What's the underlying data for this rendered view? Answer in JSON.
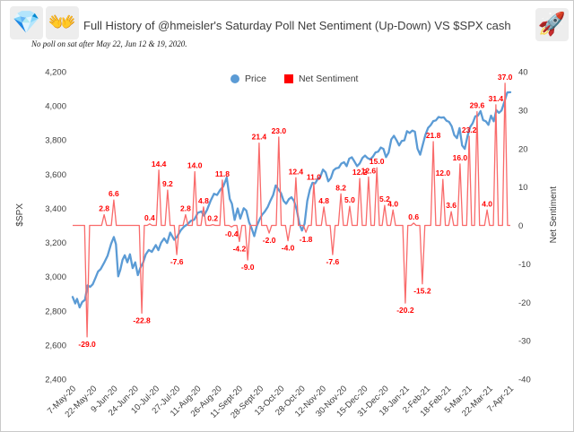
{
  "header": {
    "title": "Full History of @hmeisler's Saturday Poll Net Sentiment (Up-Down) VS $SPX  cash",
    "subtitle": "No poll on sat after May 22, Jun 12 & 19, 2020.",
    "icons": {
      "diamond": "💎",
      "open_hands": "👐",
      "rocket": "🚀"
    }
  },
  "legend": {
    "price_label": "Price",
    "sentiment_label": "Net Sentiment",
    "price_color": "#5B9BD5",
    "sentiment_color": "#FF0000"
  },
  "chart_data": {
    "type": "line",
    "title": "Full History of @hmeisler's Saturday Poll Net Sentiment (Up-Down) VS $SPX cash",
    "subtitle": "No poll on sat after May 22, Jun 12 & 19, 2020.",
    "legend_position": "top",
    "grid": false,
    "left_axis": {
      "label": "$SPX",
      "min": 2400,
      "max": 4200,
      "ticks": [
        "4,200",
        "4,000",
        "3,800",
        "3,600",
        "3,400",
        "3,200",
        "3,000",
        "2,800",
        "2,600",
        "2,400"
      ],
      "tick_values": [
        4200,
        4000,
        3800,
        3600,
        3400,
        3200,
        3000,
        2800,
        2600,
        2400
      ]
    },
    "right_axis": {
      "label": "Net Sentiment",
      "min": -40,
      "max": 40,
      "ticks": [
        "40",
        "30",
        "20",
        "10",
        "0",
        "-10",
        "-20",
        "-30",
        "-40"
      ],
      "tick_values": [
        40,
        30,
        20,
        10,
        0,
        -10,
        -20,
        -30,
        -40
      ]
    },
    "x_ticks": [
      "7-May-20",
      "22-May-20",
      "9-Jun-20",
      "24-Jun-20",
      "10-Jul-20",
      "27-Jul-20",
      "11-Aug-20",
      "26-Aug-20",
      "11-Sept-20",
      "28-Sept-20",
      "13-Oct-20",
      "28-Oct-20",
      "12-Nov-20",
      "30-Nov-20",
      "15-Dec-20",
      "31-Dec-20",
      "18-Jan-21",
      "2-Feb-21",
      "18-Feb-21",
      "5-Mar-21",
      "22-Mar-21",
      "7-Apr-21"
    ],
    "series": [
      {
        "name": "Price",
        "type": "line",
        "axis": "left",
        "color": "#5B9BD5",
        "points": [
          [
            0.0,
            2881
          ],
          [
            0.006,
            2843
          ],
          [
            0.01,
            2870
          ],
          [
            0.016,
            2820
          ],
          [
            0.022,
            2852
          ],
          [
            0.028,
            2864
          ],
          [
            0.034,
            2949
          ],
          [
            0.04,
            2940
          ],
          [
            0.046,
            2955
          ],
          [
            0.052,
            2992
          ],
          [
            0.058,
            3030
          ],
          [
            0.064,
            3044
          ],
          [
            0.072,
            3081
          ],
          [
            0.08,
            3123
          ],
          [
            0.088,
            3193
          ],
          [
            0.094,
            3232
          ],
          [
            0.099,
            3190
          ],
          [
            0.104,
            3002
          ],
          [
            0.109,
            3041
          ],
          [
            0.114,
            3098
          ],
          [
            0.119,
            3125
          ],
          [
            0.125,
            3084
          ],
          [
            0.131,
            3131
          ],
          [
            0.137,
            3050
          ],
          [
            0.143,
            3084
          ],
          [
            0.149,
            3009
          ],
          [
            0.155,
            3053
          ],
          [
            0.161,
            3083
          ],
          [
            0.167,
            3130
          ],
          [
            0.174,
            3156
          ],
          [
            0.181,
            3145
          ],
          [
            0.19,
            3185
          ],
          [
            0.196,
            3155
          ],
          [
            0.202,
            3198
          ],
          [
            0.209,
            3224
          ],
          [
            0.216,
            3197
          ],
          [
            0.223,
            3258
          ],
          [
            0.232,
            3216
          ],
          [
            0.239,
            3235
          ],
          [
            0.247,
            3271
          ],
          [
            0.255,
            3294
          ],
          [
            0.262,
            3306
          ],
          [
            0.27,
            3327
          ],
          [
            0.278,
            3334
          ],
          [
            0.286,
            3374
          ],
          [
            0.294,
            3382
          ],
          [
            0.3,
            3357
          ],
          [
            0.307,
            3390
          ],
          [
            0.315,
            3443
          ],
          [
            0.323,
            3485
          ],
          [
            0.33,
            3478
          ],
          [
            0.337,
            3508
          ],
          [
            0.344,
            3527
          ],
          [
            0.352,
            3581
          ],
          [
            0.359,
            3455
          ],
          [
            0.364,
            3427
          ],
          [
            0.37,
            3332
          ],
          [
            0.377,
            3399
          ],
          [
            0.383,
            3340
          ],
          [
            0.391,
            3401
          ],
          [
            0.397,
            3386
          ],
          [
            0.403,
            3319
          ],
          [
            0.409,
            3282
          ],
          [
            0.415,
            3237
          ],
          [
            0.421,
            3298
          ],
          [
            0.427,
            3335
          ],
          [
            0.433,
            3363
          ],
          [
            0.439,
            3381
          ],
          [
            0.446,
            3409
          ],
          [
            0.452,
            3446
          ],
          [
            0.458,
            3477
          ],
          [
            0.464,
            3534
          ],
          [
            0.47,
            3511
          ],
          [
            0.476,
            3489
          ],
          [
            0.482,
            3444
          ],
          [
            0.488,
            3427
          ],
          [
            0.494,
            3454
          ],
          [
            0.5,
            3465
          ],
          [
            0.506,
            3443
          ],
          [
            0.512,
            3390
          ],
          [
            0.518,
            3310
          ],
          [
            0.524,
            3270
          ],
          [
            0.53,
            3310
          ],
          [
            0.536,
            3443
          ],
          [
            0.542,
            3510
          ],
          [
            0.548,
            3550
          ],
          [
            0.554,
            3546
          ],
          [
            0.56,
            3572
          ],
          [
            0.566,
            3585
          ],
          [
            0.572,
            3627
          ],
          [
            0.578,
            3610
          ],
          [
            0.584,
            3558
          ],
          [
            0.59,
            3577
          ],
          [
            0.596,
            3622
          ],
          [
            0.602,
            3635
          ],
          [
            0.608,
            3638
          ],
          [
            0.614,
            3662
          ],
          [
            0.62,
            3670
          ],
          [
            0.626,
            3647
          ],
          [
            0.632,
            3691
          ],
          [
            0.638,
            3699
          ],
          [
            0.644,
            3673
          ],
          [
            0.65,
            3647
          ],
          [
            0.656,
            3663
          ],
          [
            0.662,
            3695
          ],
          [
            0.668,
            3709
          ],
          [
            0.674,
            3694
          ],
          [
            0.68,
            3687
          ],
          [
            0.686,
            3703
          ],
          [
            0.692,
            3727
          ],
          [
            0.698,
            3732
          ],
          [
            0.704,
            3756
          ],
          [
            0.71,
            3748
          ],
          [
            0.716,
            3700
          ],
          [
            0.722,
            3726
          ],
          [
            0.728,
            3804
          ],
          [
            0.734,
            3825
          ],
          [
            0.74,
            3799
          ],
          [
            0.746,
            3768
          ],
          [
            0.752,
            3795
          ],
          [
            0.758,
            3798
          ],
          [
            0.764,
            3852
          ],
          [
            0.77,
            3841
          ],
          [
            0.776,
            3855
          ],
          [
            0.782,
            3849
          ],
          [
            0.788,
            3750
          ],
          [
            0.794,
            3714
          ],
          [
            0.8,
            3773
          ],
          [
            0.806,
            3830
          ],
          [
            0.812,
            3871
          ],
          [
            0.818,
            3887
          ],
          [
            0.824,
            3911
          ],
          [
            0.83,
            3915
          ],
          [
            0.836,
            3935
          ],
          [
            0.842,
            3931
          ],
          [
            0.848,
            3933
          ],
          [
            0.854,
            3913
          ],
          [
            0.86,
            3906
          ],
          [
            0.866,
            3881
          ],
          [
            0.872,
            3829
          ],
          [
            0.878,
            3811
          ],
          [
            0.884,
            3870
          ],
          [
            0.89,
            3768
          ],
          [
            0.896,
            3748
          ],
          [
            0.902,
            3821
          ],
          [
            0.908,
            3875
          ],
          [
            0.914,
            3898
          ],
          [
            0.92,
            3939
          ],
          [
            0.926,
            3943
          ],
          [
            0.932,
            3969
          ],
          [
            0.938,
            3916
          ],
          [
            0.944,
            3910
          ],
          [
            0.95,
            3889
          ],
          [
            0.956,
            3943
          ],
          [
            0.962,
            3910
          ],
          [
            0.968,
            3975
          ],
          [
            0.974,
            3959
          ],
          [
            0.98,
            3973
          ],
          [
            0.986,
            4020
          ],
          [
            0.993,
            4078
          ],
          [
            1.0,
            4080
          ]
        ]
      },
      {
        "name": "Net Sentiment",
        "type": "spikes",
        "axis": "right",
        "color": "#F96A6A",
        "label_color": "#FF0000",
        "points": [
          [
            0.033,
            -29.0
          ],
          [
            0.072,
            2.8
          ],
          [
            0.094,
            6.6
          ],
          [
            0.158,
            -22.8
          ],
          [
            0.176,
            0.4
          ],
          [
            0.197,
            14.4
          ],
          [
            0.217,
            9.2
          ],
          [
            0.238,
            -7.6
          ],
          [
            0.258,
            2.8
          ],
          [
            0.279,
            14.0
          ],
          [
            0.299,
            4.8
          ],
          [
            0.32,
            0.2
          ],
          [
            0.342,
            11.8
          ],
          [
            0.363,
            -0.4
          ],
          [
            0.381,
            -4.2
          ],
          [
            0.4,
            -9.0
          ],
          [
            0.426,
            21.4
          ],
          [
            0.449,
            -2.0
          ],
          [
            0.471,
            23.0
          ],
          [
            0.492,
            -4.0
          ],
          [
            0.51,
            12.4
          ],
          [
            0.533,
            -1.8
          ],
          [
            0.551,
            11.0
          ],
          [
            0.574,
            4.8
          ],
          [
            0.594,
            -7.6
          ],
          [
            0.613,
            8.2
          ],
          [
            0.633,
            5.0
          ],
          [
            0.656,
            12.2
          ],
          [
            0.676,
            12.6
          ],
          [
            0.695,
            15.0
          ],
          [
            0.713,
            5.2
          ],
          [
            0.732,
            4.0
          ],
          [
            0.76,
            -20.2
          ],
          [
            0.779,
            0.6
          ],
          [
            0.799,
            -15.2
          ],
          [
            0.824,
            21.8
          ],
          [
            0.846,
            12.0
          ],
          [
            0.865,
            3.6
          ],
          [
            0.885,
            16.0
          ],
          [
            0.906,
            23.2
          ],
          [
            0.924,
            29.6
          ],
          [
            0.947,
            4.0
          ],
          [
            0.967,
            31.4
          ],
          [
            0.988,
            37.0
          ]
        ]
      }
    ]
  }
}
